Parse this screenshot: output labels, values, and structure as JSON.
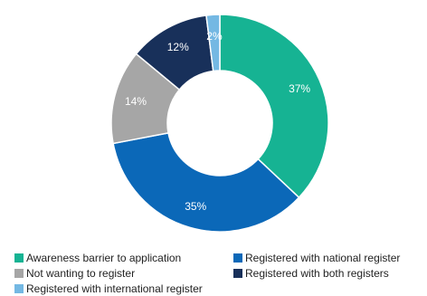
{
  "chart_data": {
    "type": "pie",
    "variant": "donut",
    "categories": [
      "Awareness barrier to application",
      "Registered with national register",
      "Not wanting to register",
      "Registered with both registers",
      "Registered with international register"
    ],
    "values": [
      37,
      35,
      14,
      12,
      2
    ],
    "data_labels": [
      "37%",
      "35%",
      "14%",
      "12%",
      "2%"
    ],
    "colors": [
      "#16b393",
      "#0b68b8",
      "#a6a6a6",
      "#18305a",
      "#74b8e3"
    ],
    "title": "",
    "legend_position": "bottom"
  }
}
